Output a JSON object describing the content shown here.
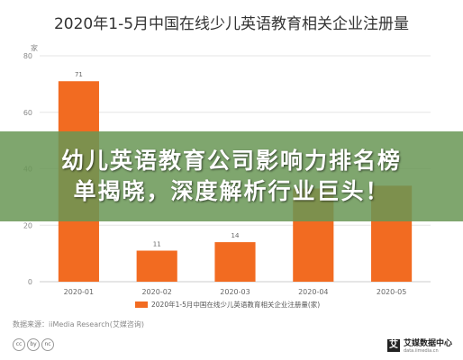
{
  "chart_data": {
    "type": "bar",
    "title": "2020年1-5月中国在线少儿英语教育相关企业注册量",
    "unit_label": "家",
    "categories": [
      "2020-01",
      "2020-02",
      "2020-03",
      "2020-04",
      "2020-05"
    ],
    "values": [
      71,
      11,
      14,
      33,
      34
    ],
    "value_labels": [
      "71",
      "11",
      "14",
      "",
      ""
    ],
    "ylim": [
      0,
      80
    ],
    "yticks": [
      0,
      20,
      40,
      60,
      80
    ],
    "legend": "2020年1-5月中国在线少儿英语教育相关企业注册量(家)",
    "bar_color": "#f26b21",
    "grid": true
  },
  "source": "数据来源：iiMedia Research(艾媒咨询)",
  "cc_badges": [
    "cc",
    "by",
    "nc"
  ],
  "brand": {
    "name": "艾媒数据中心",
    "url": "data.iimedia.cn",
    "mark": "艾"
  },
  "overlay": {
    "line1": "幼儿英语教育公司影响力排名榜",
    "line2": "单揭晓，深度解析行业巨头！",
    "color": "#699655"
  }
}
